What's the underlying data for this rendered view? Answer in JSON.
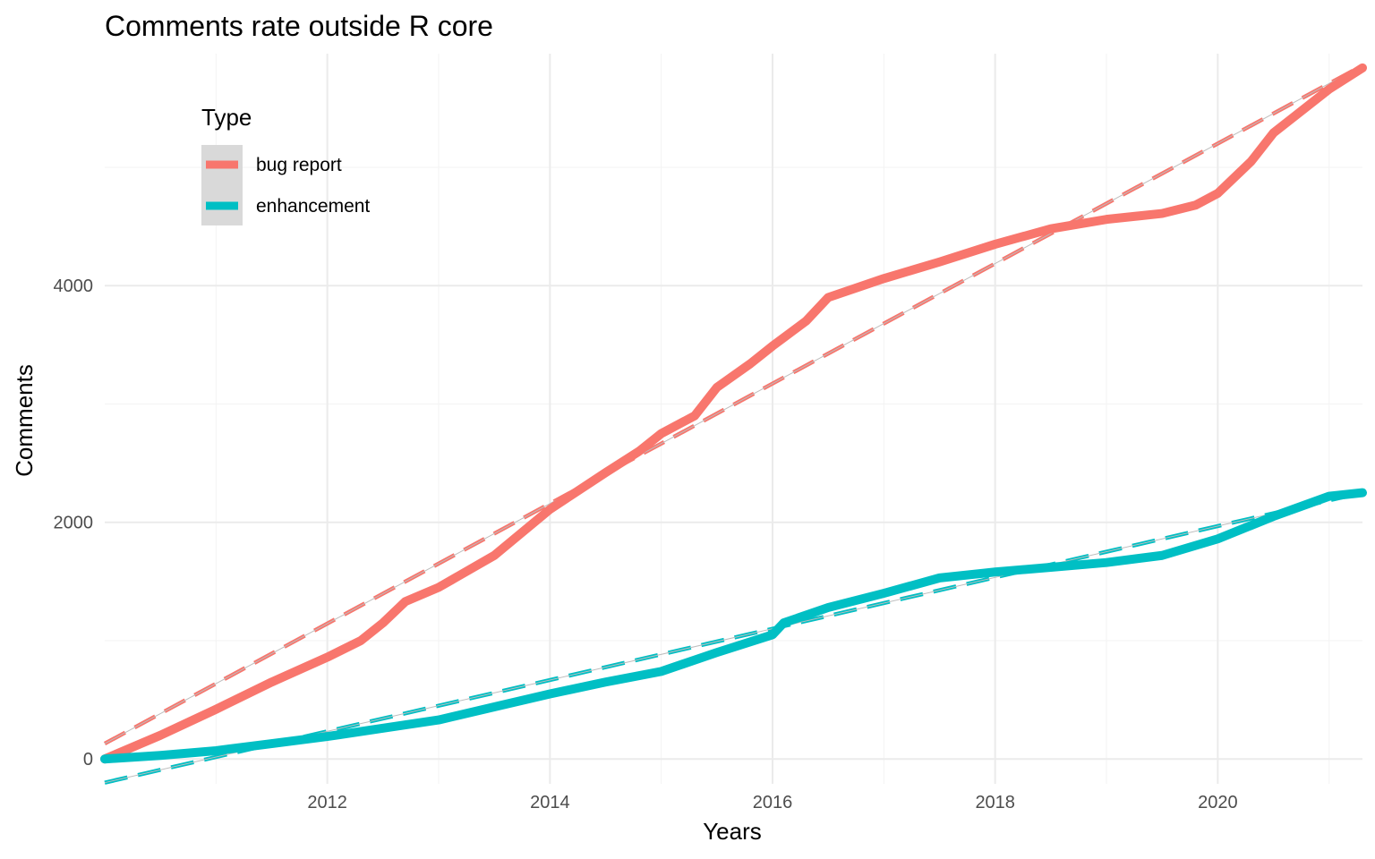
{
  "chart_data": {
    "type": "line",
    "title": "Comments rate outside R core",
    "xlabel": "Years",
    "ylabel": "Comments",
    "xlim": [
      2010.0,
      2021.3
    ],
    "ylim": [
      -210,
      5960
    ],
    "x_ticks": [
      2012,
      2014,
      2016,
      2018,
      2020
    ],
    "y_ticks": [
      0,
      2000,
      4000
    ],
    "grid": true,
    "legend": {
      "title": "Type",
      "position": "top-left"
    },
    "series": [
      {
        "name": "bug report",
        "color": "#F8766D",
        "x": [
          2010.0,
          2010.5,
          2011.0,
          2011.5,
          2012.0,
          2012.3,
          2012.5,
          2012.7,
          2013.0,
          2013.5,
          2014.0,
          2014.5,
          2014.8,
          2015.0,
          2015.3,
          2015.5,
          2015.8,
          2016.0,
          2016.3,
          2016.5,
          2017.0,
          2017.5,
          2018.0,
          2018.5,
          2019.0,
          2019.5,
          2019.8,
          2020.0,
          2020.3,
          2020.5,
          2021.0,
          2021.3
        ],
        "values": [
          0,
          200,
          420,
          650,
          860,
          1000,
          1150,
          1330,
          1450,
          1720,
          2110,
          2420,
          2600,
          2750,
          2900,
          3140,
          3340,
          3490,
          3700,
          3900,
          4060,
          4200,
          4350,
          4480,
          4560,
          4610,
          4680,
          4780,
          5050,
          5290,
          5660,
          5840
        ]
      },
      {
        "name": "enhancement",
        "color": "#00BFC4",
        "x": [
          2010.0,
          2010.5,
          2011.0,
          2011.5,
          2012.0,
          2012.5,
          2013.0,
          2013.5,
          2014.0,
          2014.5,
          2015.0,
          2015.5,
          2016.0,
          2016.1,
          2016.5,
          2017.0,
          2017.5,
          2018.0,
          2018.5,
          2019.0,
          2019.5,
          2020.0,
          2020.5,
          2021.0,
          2021.3
        ],
        "values": [
          0,
          30,
          70,
          130,
          190,
          260,
          330,
          440,
          550,
          650,
          740,
          900,
          1050,
          1150,
          1280,
          1400,
          1530,
          1580,
          1620,
          1660,
          1720,
          1860,
          2050,
          2220,
          2250
        ]
      }
    ],
    "trend_lines": [
      {
        "name": "bug report",
        "color": "#F8766D",
        "x": [
          2010.0,
          2021.3
        ],
        "values": [
          130,
          5860
        ]
      },
      {
        "name": "enhancement",
        "color": "#00BFC4",
        "x": [
          2010.0,
          2021.3
        ],
        "values": [
          -200,
          2250
        ]
      }
    ]
  }
}
